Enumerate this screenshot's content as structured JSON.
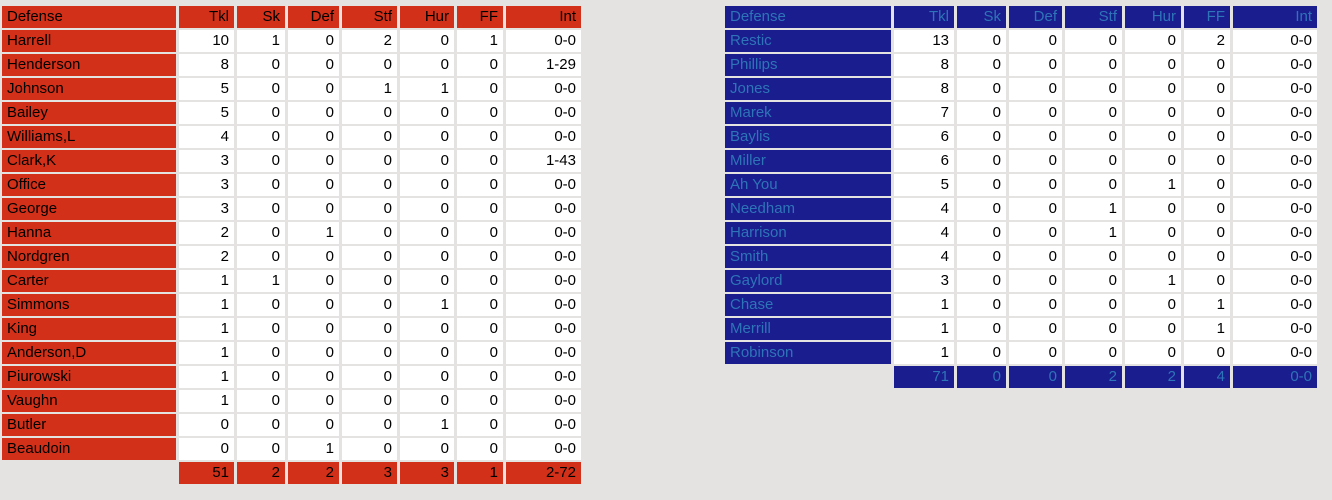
{
  "page": {
    "background": "#e4e3e1"
  },
  "theme": {
    "red": {
      "accent_bg": "#d23018",
      "accent_text": "#000000",
      "cell_bg": "#ffffff",
      "cell_text": "#000000"
    },
    "blue": {
      "accent_bg": "#1a1d8e",
      "accent_text": "#2e74b8",
      "cell_bg": "#ffffff",
      "cell_text": "#000000"
    }
  },
  "tables": [
    {
      "name": "red-defense-table",
      "theme": "red",
      "columns": [
        "Defense",
        "Tkl",
        "Sk",
        "Def",
        "Stf",
        "Hur",
        "FF",
        "Int"
      ],
      "rows": [
        [
          "Harrell",
          "10",
          "1",
          "0",
          "2",
          "0",
          "1",
          "0-0"
        ],
        [
          "Henderson",
          "8",
          "0",
          "0",
          "0",
          "0",
          "0",
          "1-29"
        ],
        [
          "Johnson",
          "5",
          "0",
          "0",
          "1",
          "1",
          "0",
          "0-0"
        ],
        [
          "Bailey",
          "5",
          "0",
          "0",
          "0",
          "0",
          "0",
          "0-0"
        ],
        [
          "Williams,L",
          "4",
          "0",
          "0",
          "0",
          "0",
          "0",
          "0-0"
        ],
        [
          "Clark,K",
          "3",
          "0",
          "0",
          "0",
          "0",
          "0",
          "1-43"
        ],
        [
          "Office",
          "3",
          "0",
          "0",
          "0",
          "0",
          "0",
          "0-0"
        ],
        [
          "George",
          "3",
          "0",
          "0",
          "0",
          "0",
          "0",
          "0-0"
        ],
        [
          "Hanna",
          "2",
          "0",
          "1",
          "0",
          "0",
          "0",
          "0-0"
        ],
        [
          "Nordgren",
          "2",
          "0",
          "0",
          "0",
          "0",
          "0",
          "0-0"
        ],
        [
          "Carter",
          "1",
          "1",
          "0",
          "0",
          "0",
          "0",
          "0-0"
        ],
        [
          "Simmons",
          "1",
          "0",
          "0",
          "0",
          "1",
          "0",
          "0-0"
        ],
        [
          "King",
          "1",
          "0",
          "0",
          "0",
          "0",
          "0",
          "0-0"
        ],
        [
          "Anderson,D",
          "1",
          "0",
          "0",
          "0",
          "0",
          "0",
          "0-0"
        ],
        [
          "Piurowski",
          "1",
          "0",
          "0",
          "0",
          "0",
          "0",
          "0-0"
        ],
        [
          "Vaughn",
          "1",
          "0",
          "0",
          "0",
          "0",
          "0",
          "0-0"
        ],
        [
          "Butler",
          "0",
          "0",
          "0",
          "0",
          "1",
          "0",
          "0-0"
        ],
        [
          "Beaudoin",
          "0",
          "0",
          "1",
          "0",
          "0",
          "0",
          "0-0"
        ]
      ],
      "totals": [
        "51",
        "2",
        "2",
        "3",
        "3",
        "1",
        "2-72"
      ]
    },
    {
      "name": "blue-defense-table",
      "theme": "blue",
      "columns": [
        "Defense",
        "Tkl",
        "Sk",
        "Def",
        "Stf",
        "Hur",
        "FF",
        "Int"
      ],
      "rows": [
        [
          "Restic",
          "13",
          "0",
          "0",
          "0",
          "0",
          "2",
          "0-0"
        ],
        [
          "Phillips",
          "8",
          "0",
          "0",
          "0",
          "0",
          "0",
          "0-0"
        ],
        [
          "Jones",
          "8",
          "0",
          "0",
          "0",
          "0",
          "0",
          "0-0"
        ],
        [
          "Marek",
          "7",
          "0",
          "0",
          "0",
          "0",
          "0",
          "0-0"
        ],
        [
          "Baylis",
          "6",
          "0",
          "0",
          "0",
          "0",
          "0",
          "0-0"
        ],
        [
          "Miller",
          "6",
          "0",
          "0",
          "0",
          "0",
          "0",
          "0-0"
        ],
        [
          "Ah You",
          "5",
          "0",
          "0",
          "0",
          "1",
          "0",
          "0-0"
        ],
        [
          "Needham",
          "4",
          "0",
          "0",
          "1",
          "0",
          "0",
          "0-0"
        ],
        [
          "Harrison",
          "4",
          "0",
          "0",
          "1",
          "0",
          "0",
          "0-0"
        ],
        [
          "Smith",
          "4",
          "0",
          "0",
          "0",
          "0",
          "0",
          "0-0"
        ],
        [
          "Gaylord",
          "3",
          "0",
          "0",
          "0",
          "1",
          "0",
          "0-0"
        ],
        [
          "Chase",
          "1",
          "0",
          "0",
          "0",
          "0",
          "1",
          "0-0"
        ],
        [
          "Merrill",
          "1",
          "0",
          "0",
          "0",
          "0",
          "1",
          "0-0"
        ],
        [
          "Robinson",
          "1",
          "0",
          "0",
          "0",
          "0",
          "0",
          "0-0"
        ]
      ],
      "totals": [
        "71",
        "0",
        "0",
        "2",
        "2",
        "4",
        "0-0"
      ]
    }
  ]
}
